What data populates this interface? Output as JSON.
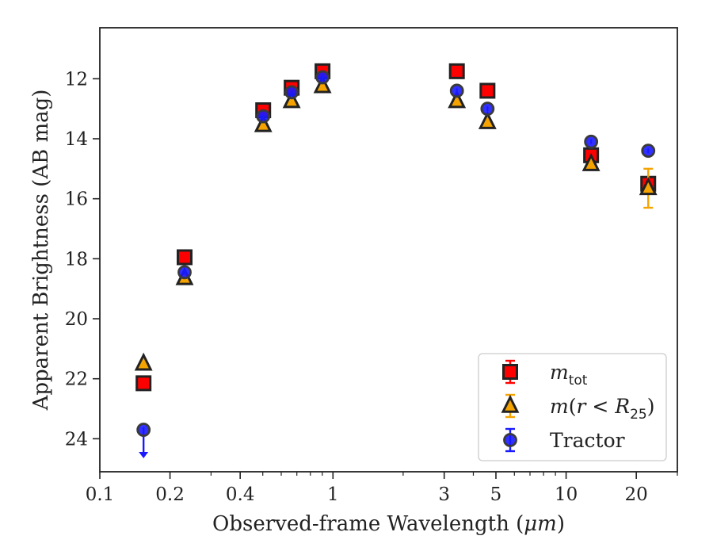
{
  "chart_data": {
    "type": "scatter",
    "title": "",
    "xlabel_prefix": "Observed-frame Wavelength (",
    "xlabel_unit": "μm",
    "xlabel_suffix": ")",
    "ylabel": "Apparent Brightness (AB mag)",
    "x_scale": "log",
    "y_inverted": true,
    "xlim": [
      0.1,
      30
    ],
    "ylim": [
      25.1,
      10.3
    ],
    "x_ticks": [
      0.1,
      0.2,
      0.4,
      1,
      3,
      5,
      10,
      20
    ],
    "x_tick_labels": [
      "0.1",
      "0.2",
      "0.4",
      "1",
      "3",
      "5",
      "10",
      "20"
    ],
    "y_ticks": [
      12,
      14,
      16,
      18,
      20,
      22,
      24
    ],
    "y_tick_labels": [
      "12",
      "14",
      "16",
      "18",
      "20",
      "22",
      "24"
    ],
    "legend_position": "lower-right",
    "series": [
      {
        "key": "mtot",
        "legend_base": "m",
        "legend_sub": "tot",
        "marker": "square",
        "face_color": "#ff0000",
        "edge_color": "#222222",
        "errbar_color": "#ff0000",
        "points": [
          {
            "x": 0.154,
            "y": 22.15
          },
          {
            "x": 0.231,
            "y": 17.95
          },
          {
            "x": 0.502,
            "y": 13.05
          },
          {
            "x": 0.665,
            "y": 12.3
          },
          {
            "x": 0.902,
            "y": 11.75
          },
          {
            "x": 3.4,
            "y": 11.75
          },
          {
            "x": 4.6,
            "y": 12.4
          },
          {
            "x": 12.8,
            "y": 14.55
          },
          {
            "x": 22.5,
            "y": 15.5
          }
        ]
      },
      {
        "key": "mr25",
        "legend_base": "m",
        "legend_sub": "25",
        "marker": "triangle",
        "face_color": "#f5a300",
        "edge_color": "#222222",
        "errbar_color": "#f5a300",
        "points": [
          {
            "x": 0.154,
            "y": 21.5
          },
          {
            "x": 0.231,
            "y": 18.65
          },
          {
            "x": 0.502,
            "y": 13.55
          },
          {
            "x": 0.665,
            "y": 12.75
          },
          {
            "x": 0.902,
            "y": 12.25
          },
          {
            "x": 3.4,
            "y": 12.75
          },
          {
            "x": 4.6,
            "y": 13.45
          },
          {
            "x": 12.8,
            "y": 14.85
          },
          {
            "x": 22.5,
            "y": 15.65,
            "err": 0.65
          }
        ]
      },
      {
        "key": "tractor",
        "legend_base": "Tractor",
        "marker": "circle",
        "face_color": "#1a1aff",
        "edge_color": "#3a3a3a",
        "errbar_color": "#1a1aff",
        "points": [
          {
            "x": 0.154,
            "y": 23.7,
            "upper_limit": true
          },
          {
            "x": 0.231,
            "y": 18.45
          },
          {
            "x": 0.502,
            "y": 13.25
          },
          {
            "x": 0.665,
            "y": 12.45
          },
          {
            "x": 0.902,
            "y": 11.95
          },
          {
            "x": 3.4,
            "y": 12.4
          },
          {
            "x": 4.6,
            "y": 13.0
          },
          {
            "x": 12.8,
            "y": 14.1
          },
          {
            "x": 22.5,
            "y": 14.4
          }
        ]
      }
    ]
  }
}
